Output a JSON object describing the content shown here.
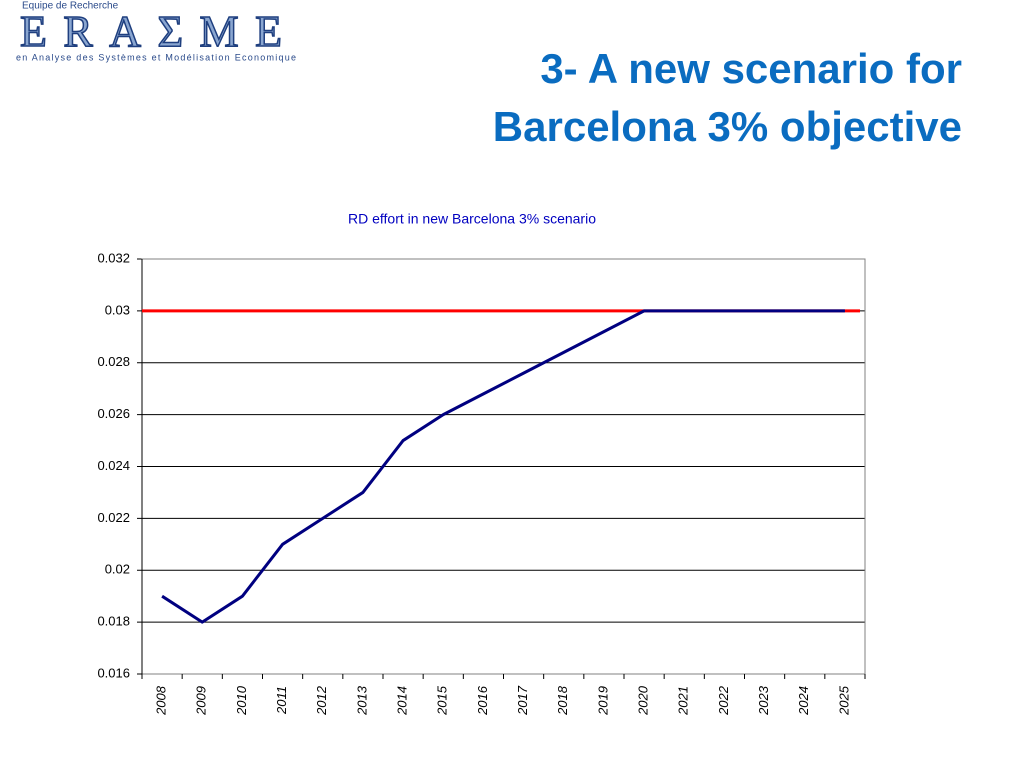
{
  "logo": {
    "top": "Equipe de Recherche",
    "name": "ERAΣME",
    "bottom": "en Analyse des Systèmes et Modélisation Economique"
  },
  "slide_title": [
    "3- A new scenario for",
    "Barcelona 3% objective"
  ],
  "chart_data": {
    "type": "line",
    "title": "RD effort in new Barcelona 3% scenario",
    "categories": [
      "2008",
      "2009",
      "2010",
      "2011",
      "2012",
      "2013",
      "2014",
      "2015",
      "2016",
      "2017",
      "2018",
      "2019",
      "2020",
      "2021",
      "2022",
      "2023",
      "2024",
      "2025"
    ],
    "series": [
      {
        "color": "#000080",
        "values": [
          0.019,
          0.018,
          0.019,
          0.021,
          0.022,
          0.023,
          0.025,
          0.026,
          0.0268,
          0.0276,
          0.0284,
          0.0292,
          0.03,
          0.03,
          0.03,
          0.03,
          0.03,
          0.03
        ]
      }
    ],
    "reference_line": {
      "value": 0.03,
      "color": "#ff0000"
    },
    "ylim": [
      0.016,
      0.032
    ],
    "yticks": [
      0.016,
      0.018,
      0.02,
      0.022,
      0.024,
      0.026,
      0.028,
      0.03,
      0.032
    ],
    "grid": true
  }
}
